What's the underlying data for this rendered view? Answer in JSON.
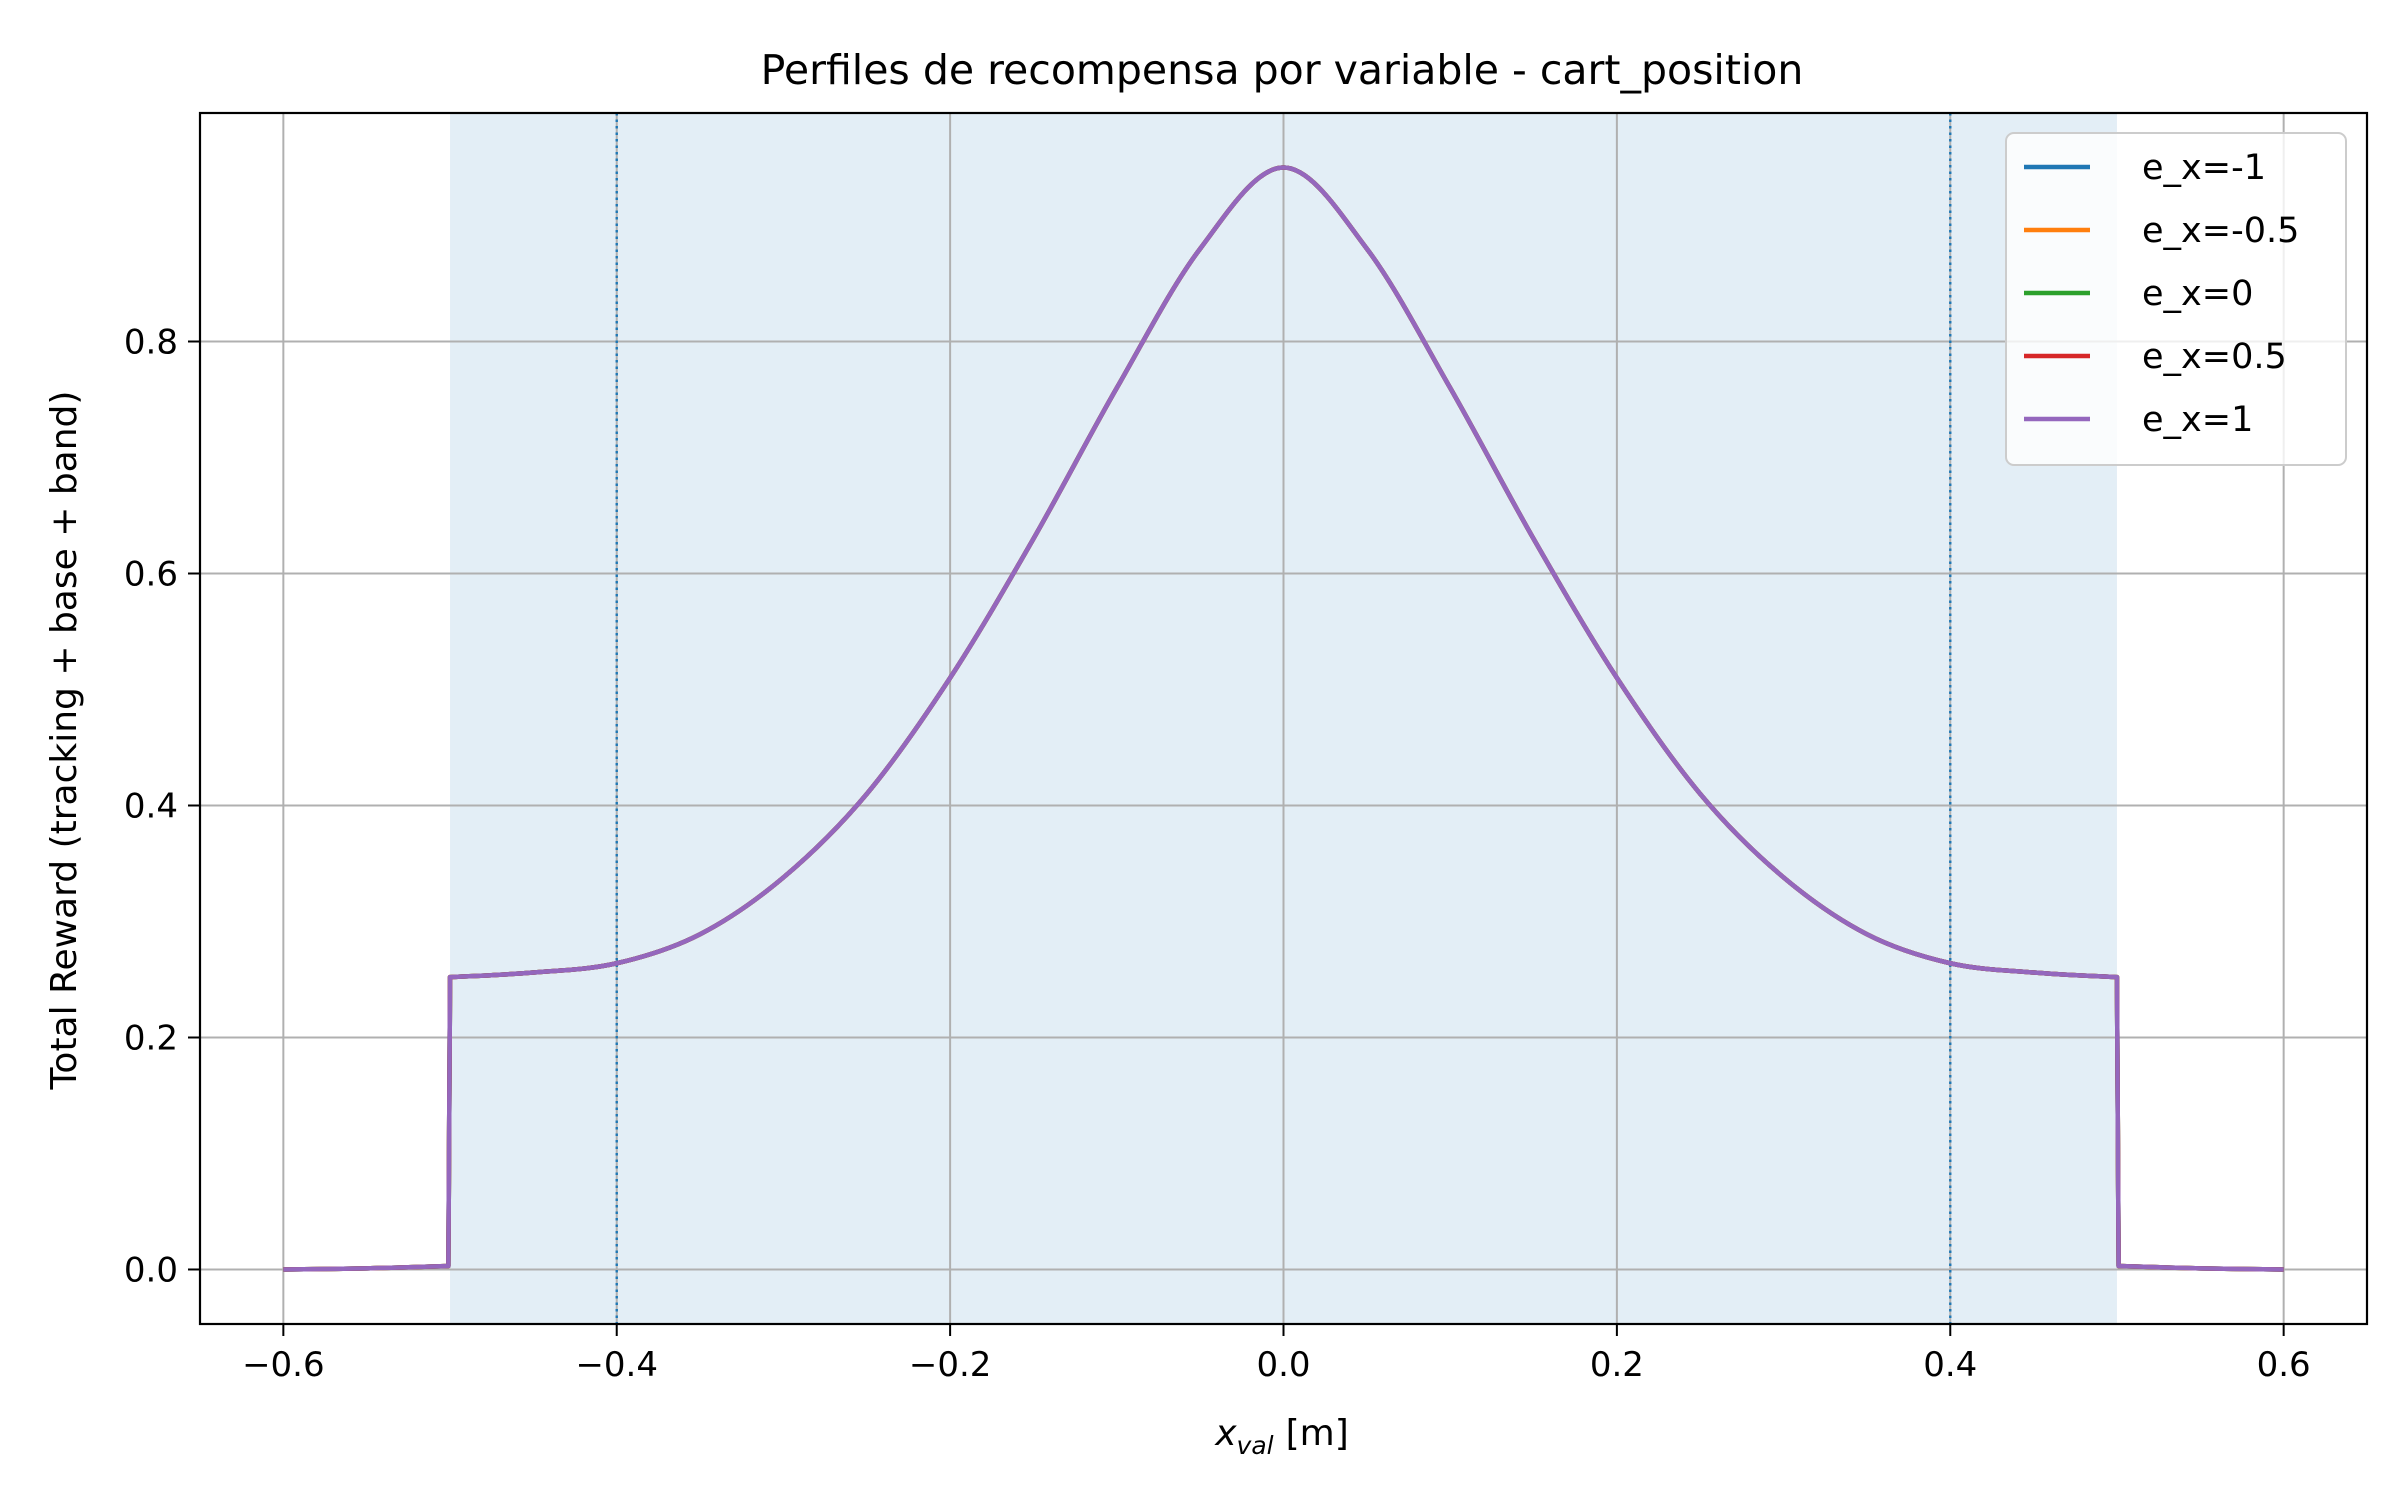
{
  "chart_data": {
    "type": "line",
    "title": "Perfiles de recompensa por variable - cart_position",
    "xlabel": {
      "main": "x",
      "sub": "val",
      "unit": "[m]"
    },
    "ylabel": "Total Reward (tracking + base + band)",
    "xlim": [
      -0.65,
      0.65
    ],
    "ylim": [
      -0.047,
      0.997
    ],
    "xticks": [
      -0.6,
      -0.4,
      -0.2,
      0.0,
      0.2,
      0.4,
      0.6
    ],
    "xtick_labels": [
      "−0.6",
      "−0.4",
      "−0.2",
      "0.0",
      "0.2",
      "0.4",
      "0.6"
    ],
    "yticks": [
      0.0,
      0.2,
      0.4,
      0.6,
      0.8
    ],
    "ytick_labels": [
      "0.0",
      "0.2",
      "0.4",
      "0.6",
      "0.8"
    ],
    "grid": true,
    "legend_position": "top-right",
    "shaded_band": {
      "x0": -0.5,
      "x1": 0.5,
      "color": "#e3eef6"
    },
    "vlines": [
      {
        "x": -0.4,
        "color": "#1f77b4",
        "style": "dotted"
      },
      {
        "x": 0.4,
        "color": "#1f77b4",
        "style": "dotted"
      }
    ],
    "x": [
      -0.6,
      -0.55,
      -0.501,
      -0.5,
      -0.45,
      -0.4,
      -0.35,
      -0.3,
      -0.25,
      -0.2,
      -0.15,
      -0.1,
      -0.05,
      0.0,
      0.05,
      0.1,
      0.15,
      0.2,
      0.25,
      0.3,
      0.35,
      0.4,
      0.45,
      0.5,
      0.501,
      0.55,
      0.6
    ],
    "y": [
      0.0,
      0.001,
      0.003,
      0.252,
      0.256,
      0.264,
      0.289,
      0.338,
      0.41,
      0.51,
      0.63,
      0.76,
      0.88,
      0.95,
      0.88,
      0.76,
      0.63,
      0.51,
      0.41,
      0.338,
      0.289,
      0.264,
      0.256,
      0.252,
      0.003,
      0.001,
      0.0
    ],
    "series": [
      {
        "name": "e_x=-1",
        "color": "#1f77b4"
      },
      {
        "name": "e_x=-0.5",
        "color": "#ff7f0e"
      },
      {
        "name": "e_x=0",
        "color": "#2ca02c"
      },
      {
        "name": "e_x=0.5",
        "color": "#d62728"
      },
      {
        "name": "e_x=1",
        "color": "#9467bd"
      }
    ]
  }
}
